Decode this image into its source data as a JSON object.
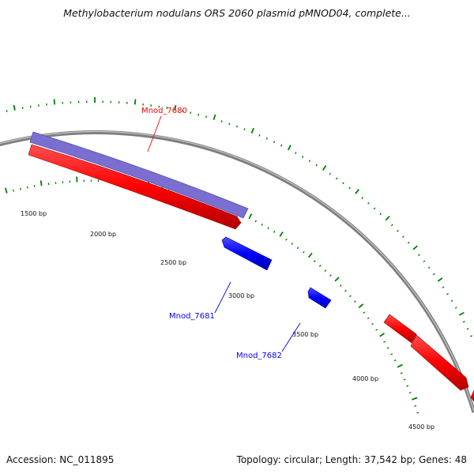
{
  "title": "Methylobacterium nodulans ORS 2060 plasmid pMNOD04, complete...",
  "footer": {
    "accession": "Accession: NC_011895",
    "summary": "Topology: circular; Length: 37,542 bp; Genes: 48"
  },
  "colors": {
    "forward_gene": "#ff0000",
    "reverse_gene": "#0000ff",
    "cds_feature": "#7a6fd0",
    "backbone": "#888888",
    "ticks": "#008000"
  },
  "bp_labels": [
    "1500 bp",
    "2000 bp",
    "2500 bp",
    "3000 bp",
    "3500 bp",
    "4000 bp",
    "4500 bp"
  ],
  "gene_labels": [
    {
      "name": "Mnod_7680",
      "strand": "forward"
    },
    {
      "name": "Mnod_7681",
      "strand": "reverse"
    },
    {
      "name": "Mnod_7682",
      "strand": "reverse"
    }
  ]
}
